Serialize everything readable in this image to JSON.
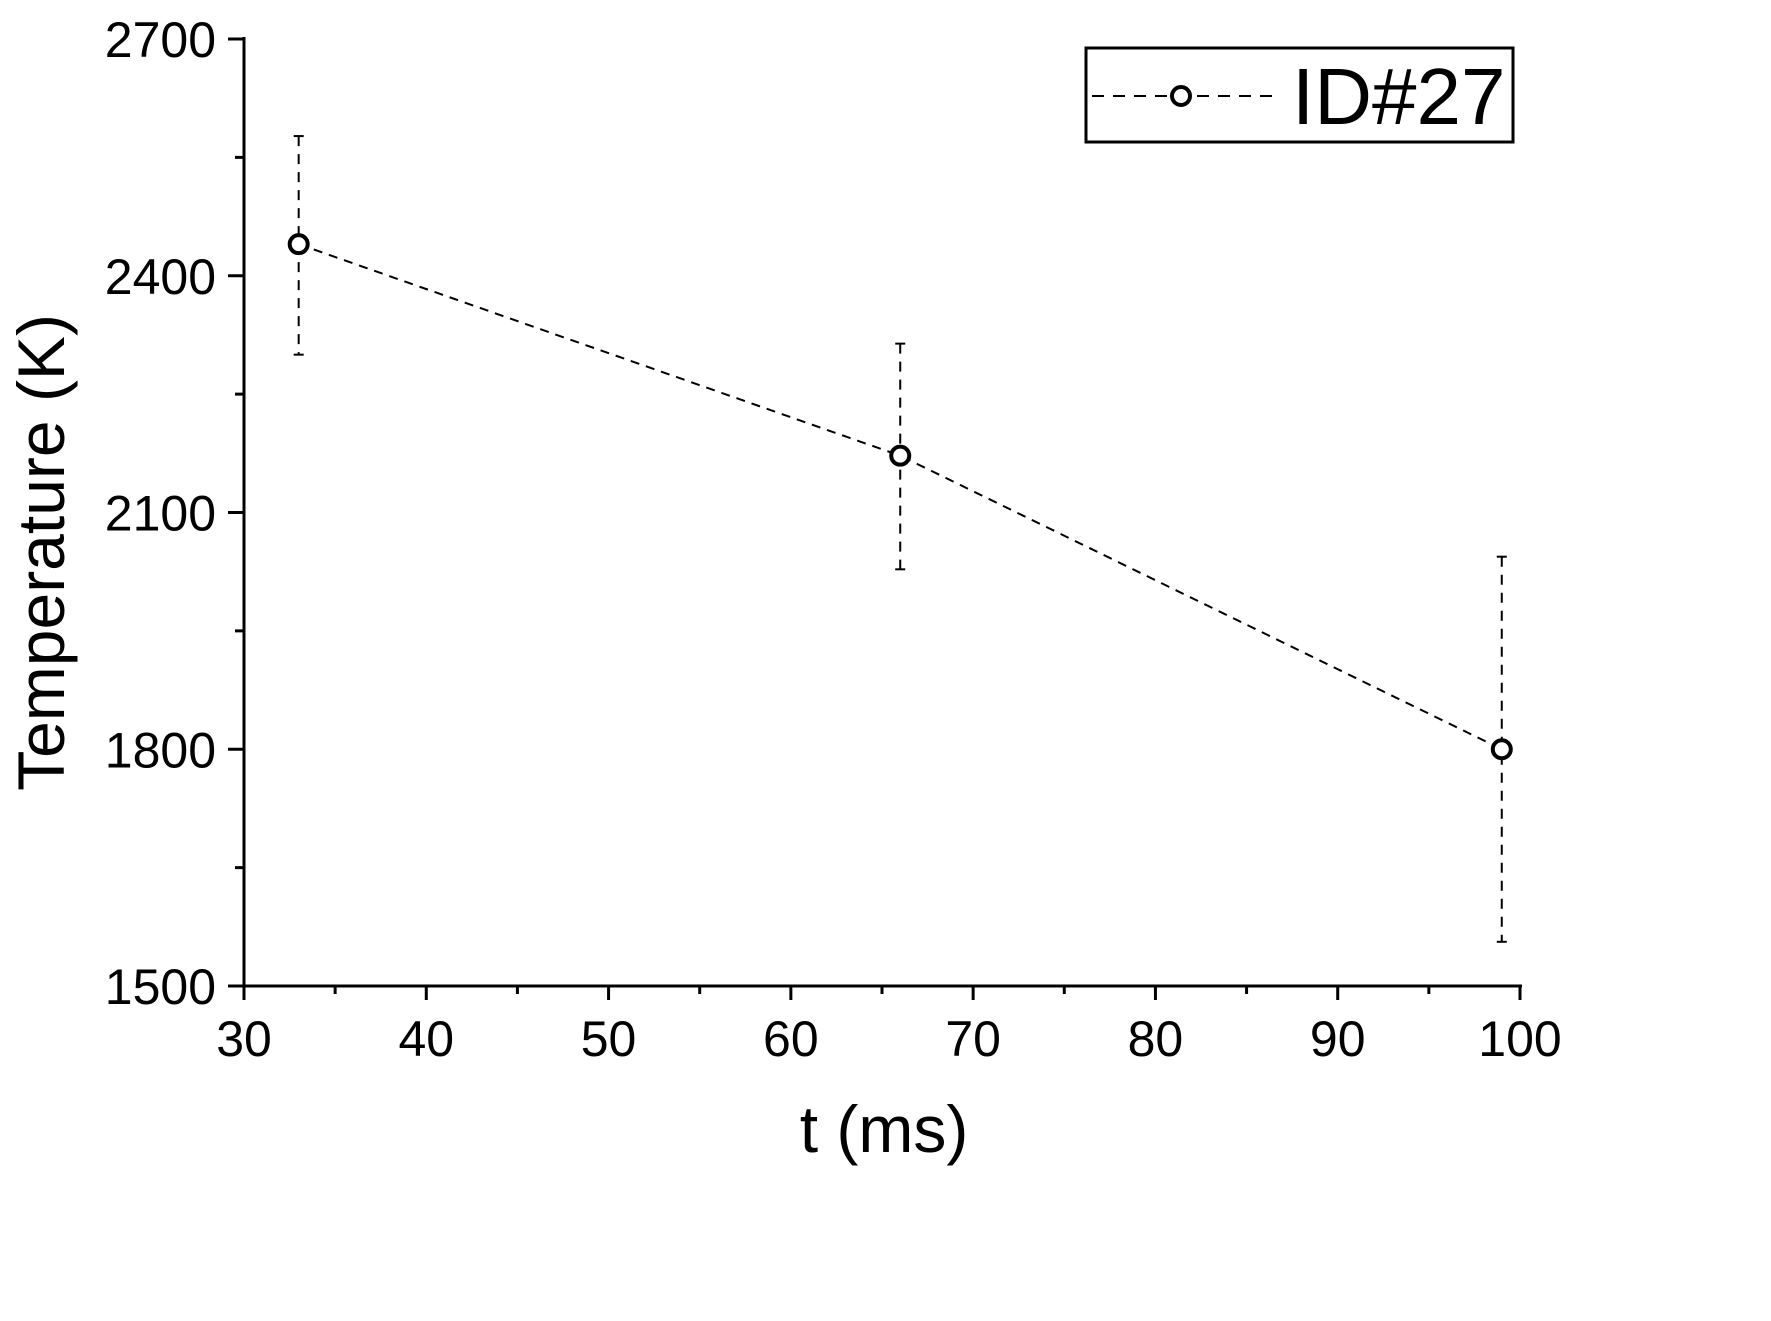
{
  "chart_data": {
    "type": "line",
    "title": "",
    "xlabel": "t (ms)",
    "ylabel": "Temperature (K)",
    "xlim": [
      30,
      100
    ],
    "ylim": [
      1500,
      2700
    ],
    "x_ticks": [
      30,
      40,
      50,
      60,
      70,
      80,
      90,
      100
    ],
    "y_ticks": [
      1500,
      1800,
      2100,
      2400,
      2700
    ],
    "x_minor_step": 5,
    "y_minor_step": 150,
    "grid": false,
    "legend_position": "top-right",
    "series": [
      {
        "name": "ID#27",
        "color": "#000000",
        "line_style": "dashed",
        "marker": "open-circle",
        "x": [
          33,
          66,
          99
        ],
        "y": [
          2440,
          2172,
          1800
        ],
        "y_err_lower": [
          2300,
          2028,
          1556
        ],
        "y_err_upper": [
          2577,
          2314,
          2044
        ]
      }
    ]
  }
}
